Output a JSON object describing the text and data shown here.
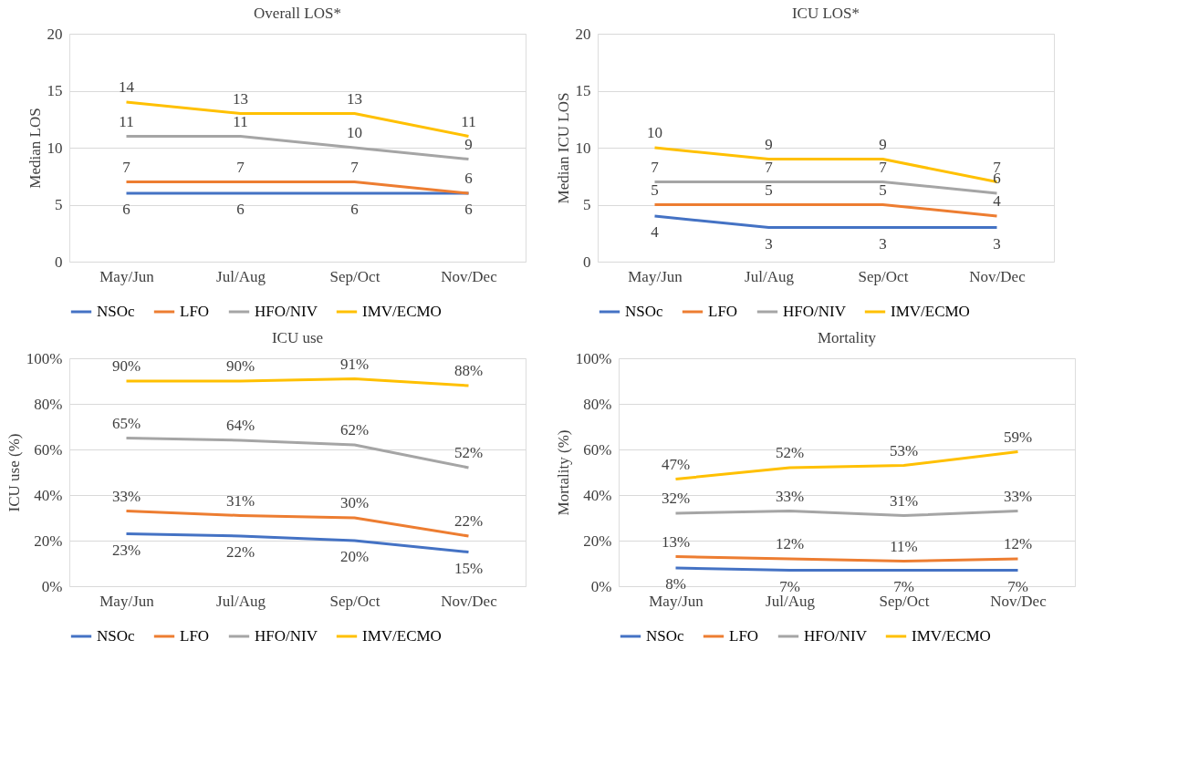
{
  "chart_data": [
    {
      "type": "line",
      "title": "Overall LOS*",
      "ylabel": "Median LOS",
      "categories": [
        "May/Jun",
        "Jul/Aug",
        "Sep/Oct",
        "Nov/Dec"
      ],
      "ylim": [
        0,
        20
      ],
      "yticks": [
        0,
        5,
        10,
        15,
        20
      ],
      "grid": "y",
      "legend": "bottom",
      "data_labels": true,
      "marker": "none",
      "line_style": "solid",
      "series": [
        {
          "name": "NSOc",
          "color": "#4472c4",
          "values": [
            6,
            6,
            6,
            6
          ]
        },
        {
          "name": "LFO",
          "color": "#ed7d31",
          "values": [
            7,
            7,
            7,
            6
          ]
        },
        {
          "name": "HFO/NIV",
          "color": "#a5a5a5",
          "values": [
            11,
            11,
            10,
            9
          ]
        },
        {
          "name": "IMV/ECMO",
          "color": "#ffc000",
          "values": [
            14,
            13,
            13,
            11
          ]
        }
      ]
    },
    {
      "type": "line",
      "title": "ICU LOS*",
      "ylabel": "Median ICU LOS",
      "categories": [
        "May/Jun",
        "Jul/Aug",
        "Sep/Oct",
        "Nov/Dec"
      ],
      "ylim": [
        0,
        20
      ],
      "yticks": [
        0,
        5,
        10,
        15,
        20
      ],
      "grid": "y",
      "legend": "bottom",
      "data_labels": true,
      "marker": "none",
      "line_style": "solid",
      "series": [
        {
          "name": "NSOc",
          "color": "#4472c4",
          "values": [
            4,
            3,
            3,
            3
          ]
        },
        {
          "name": "LFO",
          "color": "#ed7d31",
          "values": [
            5,
            5,
            5,
            4
          ]
        },
        {
          "name": "HFO/NIV",
          "color": "#a5a5a5",
          "values": [
            7,
            7,
            7,
            6
          ]
        },
        {
          "name": "IMV/ECMO",
          "color": "#ffc000",
          "values": [
            10,
            9,
            9,
            7
          ]
        }
      ]
    },
    {
      "type": "line",
      "title": "ICU use",
      "ylabel": "ICU use (%)",
      "categories": [
        "May/Jun",
        "Jul/Aug",
        "Sep/Oct",
        "Nov/Dec"
      ],
      "ylim": [
        0,
        100
      ],
      "yticks": [
        {
          "value": 0,
          "label": "0%"
        },
        {
          "value": 20,
          "label": "20%"
        },
        {
          "value": 40,
          "label": "40%"
        },
        {
          "value": 60,
          "label": "60%"
        },
        {
          "value": 80,
          "label": "80%"
        },
        {
          "value": 100,
          "label": "100%"
        }
      ],
      "grid": "y",
      "legend": "bottom",
      "marker": "none",
      "line_style": "solid",
      "series": [
        {
          "name": "NSOc",
          "color": "#4472c4",
          "values": [
            23,
            22,
            20,
            15
          ],
          "value_labels": [
            "23%",
            "22%",
            "20%",
            "15%"
          ]
        },
        {
          "name": "LFO",
          "color": "#ed7d31",
          "values": [
            33,
            31,
            30,
            22
          ],
          "value_labels": [
            "33%",
            "31%",
            "30%",
            "22%"
          ]
        },
        {
          "name": "HFO/NIV",
          "color": "#a5a5a5",
          "values": [
            65,
            64,
            62,
            52
          ],
          "value_labels": [
            "65%",
            "64%",
            "62%",
            "52%"
          ]
        },
        {
          "name": "IMV/ECMO",
          "color": "#ffc000",
          "values": [
            90,
            90,
            91,
            88
          ],
          "value_labels": [
            "90%",
            "90%",
            "91%",
            "88%"
          ]
        }
      ]
    },
    {
      "type": "line",
      "title": "Mortality",
      "ylabel": "Mortality (%)",
      "categories": [
        "May/Jun",
        "Jul/Aug",
        "Sep/Oct",
        "Nov/Dec"
      ],
      "ylim": [
        0,
        100
      ],
      "yticks": [
        {
          "value": 0,
          "label": "0%"
        },
        {
          "value": 20,
          "label": "20%"
        },
        {
          "value": 40,
          "label": "40%"
        },
        {
          "value": 60,
          "label": "60%"
        },
        {
          "value": 80,
          "label": "80%"
        },
        {
          "value": 100,
          "label": "100%"
        }
      ],
      "grid": "y",
      "legend": "bottom",
      "marker": "none",
      "line_style": "solid",
      "series": [
        {
          "name": "NSOc",
          "color": "#4472c4",
          "values": [
            8,
            7,
            7,
            7
          ],
          "value_labels": [
            "8%",
            "7%",
            "7%",
            "7%"
          ]
        },
        {
          "name": "LFO",
          "color": "#ed7d31",
          "values": [
            13,
            12,
            11,
            12
          ],
          "value_labels": [
            "13%",
            "12%",
            "11%",
            "12%"
          ]
        },
        {
          "name": "HFO/NIV",
          "color": "#a5a5a5",
          "values": [
            32,
            33,
            31,
            33
          ],
          "value_labels": [
            "32%",
            "33%",
            "31%",
            "33%"
          ]
        },
        {
          "name": "IMV/ECMO",
          "color": "#ffc000",
          "values": [
            47,
            52,
            53,
            59
          ],
          "value_labels": [
            "47%",
            "52%",
            "53%",
            "59%"
          ]
        }
      ]
    }
  ]
}
